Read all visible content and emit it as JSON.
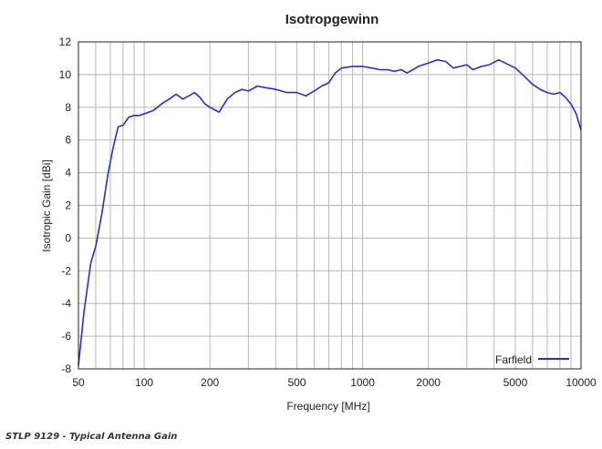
{
  "caption": "STLP 9129 - Typical Antenna Gain",
  "chart_data": {
    "type": "line",
    "title": "Isotropgewinn",
    "xlabel": "Frequency [MHz]",
    "ylabel": "Isotropic Gain [dBi]",
    "xscale": "log",
    "xlim": [
      50,
      10000
    ],
    "ylim": [
      -8,
      12
    ],
    "x_ticks": [
      50,
      100,
      200,
      500,
      1000,
      2000,
      5000,
      10000
    ],
    "x_tick_labels": [
      "50",
      "100",
      "200",
      "500",
      "1000",
      "2000",
      "5000",
      "10000"
    ],
    "y_ticks": [
      -8,
      -6,
      -4,
      -2,
      0,
      2,
      4,
      6,
      8,
      10,
      12
    ],
    "y_tick_labels": [
      "-8",
      "-6",
      "-4",
      "-2",
      "0",
      "2",
      "4",
      "6",
      "8",
      "10",
      "12"
    ],
    "grid": true,
    "legend_position": "bottom-right",
    "series": [
      {
        "name": "Farfield",
        "color": "#2b2bd9",
        "x": [
          50,
          53,
          57,
          60,
          64,
          68,
          72,
          76,
          80,
          85,
          90,
          95,
          100,
          110,
          120,
          130,
          140,
          150,
          160,
          170,
          180,
          190,
          200,
          220,
          240,
          260,
          280,
          300,
          330,
          360,
          400,
          450,
          500,
          550,
          600,
          650,
          700,
          750,
          800,
          900,
          1000,
          1100,
          1200,
          1300,
          1400,
          1500,
          1600,
          1700,
          1800,
          2000,
          2200,
          2400,
          2600,
          2800,
          3000,
          3200,
          3500,
          3800,
          4200,
          4500,
          5000,
          5500,
          6000,
          6500,
          7000,
          7500,
          8000,
          8500,
          9000,
          9500,
          10000
        ],
        "y": [
          -7.8,
          -4.5,
          -1.5,
          -0.5,
          1.5,
          3.8,
          5.5,
          6.8,
          6.9,
          7.4,
          7.5,
          7.5,
          7.6,
          7.8,
          8.2,
          8.5,
          8.8,
          8.5,
          8.7,
          8.9,
          8.6,
          8.2,
          8.0,
          7.7,
          8.5,
          8.9,
          9.1,
          9.0,
          9.3,
          9.2,
          9.1,
          8.9,
          8.9,
          8.7,
          9.0,
          9.3,
          9.5,
          10.1,
          10.4,
          10.5,
          10.5,
          10.4,
          10.3,
          10.3,
          10.2,
          10.3,
          10.1,
          10.3,
          10.5,
          10.7,
          10.9,
          10.8,
          10.4,
          10.5,
          10.6,
          10.3,
          10.5,
          10.6,
          10.9,
          10.7,
          10.4,
          9.9,
          9.4,
          9.1,
          8.9,
          8.8,
          8.9,
          8.6,
          8.2,
          7.6,
          6.6
        ]
      }
    ]
  }
}
